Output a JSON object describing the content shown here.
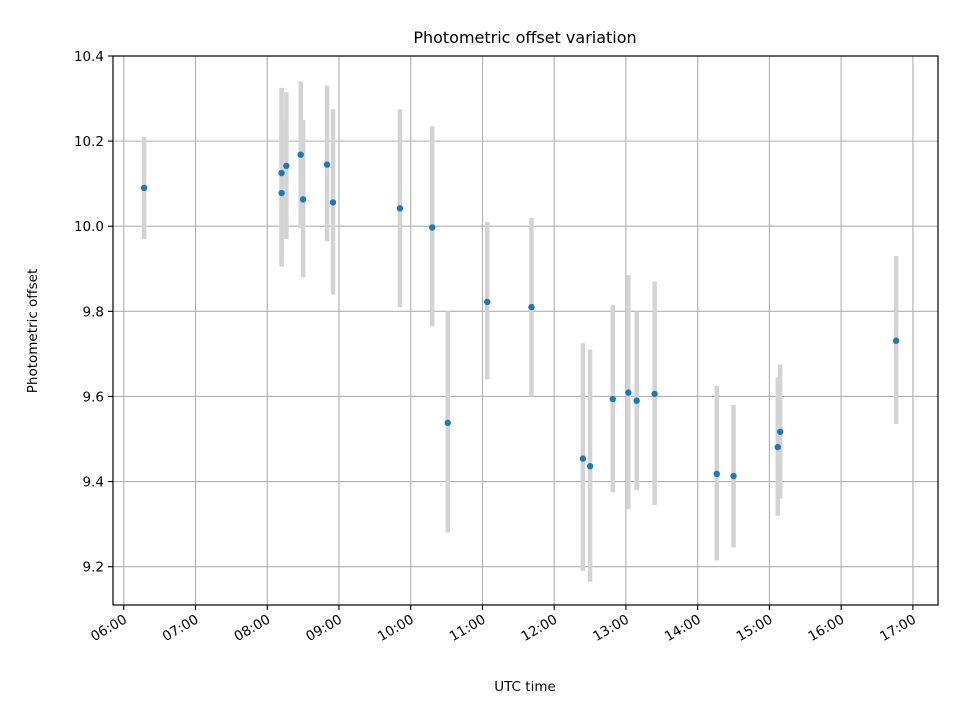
{
  "chart_data": {
    "type": "scatter",
    "title": "Photometric offset variation",
    "xlabel": "UTC time",
    "ylabel": "Photometric offset",
    "xlim": [
      "05:51",
      "17:21"
    ],
    "ylim": [
      9.11,
      10.4
    ],
    "grid": true,
    "x_ticks": [
      "06:00",
      "07:00",
      "08:00",
      "09:00",
      "10:00",
      "11:00",
      "12:00",
      "13:00",
      "14:00",
      "15:00",
      "16:00",
      "17:00"
    ],
    "y_ticks": [
      "9.2",
      "9.4",
      "9.6",
      "9.8",
      "10.0",
      "10.2",
      "10.4"
    ],
    "colors": {
      "point": "#1f77b4",
      "errorbar": "#d3d3d3",
      "grid": "#b0b0b0"
    },
    "points": [
      {
        "t": "06:17",
        "y": 10.09,
        "ylo": 9.97,
        "yhi": 10.21
      },
      {
        "t": "08:12",
        "y": 10.125,
        "ylo": 9.92,
        "yhi": 10.325
      },
      {
        "t": "08:12",
        "y": 10.078,
        "ylo": 9.905,
        "yhi": 10.25
      },
      {
        "t": "08:16",
        "y": 10.142,
        "ylo": 9.97,
        "yhi": 10.315
      },
      {
        "t": "08:28",
        "y": 10.168,
        "ylo": 9.995,
        "yhi": 10.34
      },
      {
        "t": "08:30",
        "y": 10.063,
        "ylo": 9.88,
        "yhi": 10.25
      },
      {
        "t": "08:50",
        "y": 10.145,
        "ylo": 9.965,
        "yhi": 10.33
      },
      {
        "t": "08:55",
        "y": 10.056,
        "ylo": 9.84,
        "yhi": 10.275
      },
      {
        "t": "09:51",
        "y": 10.042,
        "ylo": 9.81,
        "yhi": 10.275
      },
      {
        "t": "10:18",
        "y": 9.997,
        "ylo": 9.765,
        "yhi": 10.235
      },
      {
        "t": "10:31",
        "y": 9.538,
        "ylo": 9.28,
        "yhi": 9.8
      },
      {
        "t": "11:04",
        "y": 9.822,
        "ylo": 9.64,
        "yhi": 10.01
      },
      {
        "t": "11:41",
        "y": 9.81,
        "ylo": 9.6,
        "yhi": 10.02
      },
      {
        "t": "12:24",
        "y": 9.454,
        "ylo": 9.19,
        "yhi": 9.725
      },
      {
        "t": "12:30",
        "y": 9.436,
        "ylo": 9.165,
        "yhi": 9.71
      },
      {
        "t": "12:49",
        "y": 9.594,
        "ylo": 9.375,
        "yhi": 9.815
      },
      {
        "t": "13:02",
        "y": 9.609,
        "ylo": 9.335,
        "yhi": 9.885
      },
      {
        "t": "13:09",
        "y": 9.59,
        "ylo": 9.38,
        "yhi": 9.8
      },
      {
        "t": "13:24",
        "y": 9.606,
        "ylo": 9.345,
        "yhi": 9.87
      },
      {
        "t": "14:16",
        "y": 9.418,
        "ylo": 9.215,
        "yhi": 9.625
      },
      {
        "t": "14:30",
        "y": 9.413,
        "ylo": 9.245,
        "yhi": 9.58
      },
      {
        "t": "15:07",
        "y": 9.481,
        "ylo": 9.32,
        "yhi": 9.645
      },
      {
        "t": "15:09",
        "y": 9.517,
        "ylo": 9.36,
        "yhi": 9.675
      },
      {
        "t": "16:46",
        "y": 9.731,
        "ylo": 9.535,
        "yhi": 9.93
      }
    ]
  }
}
